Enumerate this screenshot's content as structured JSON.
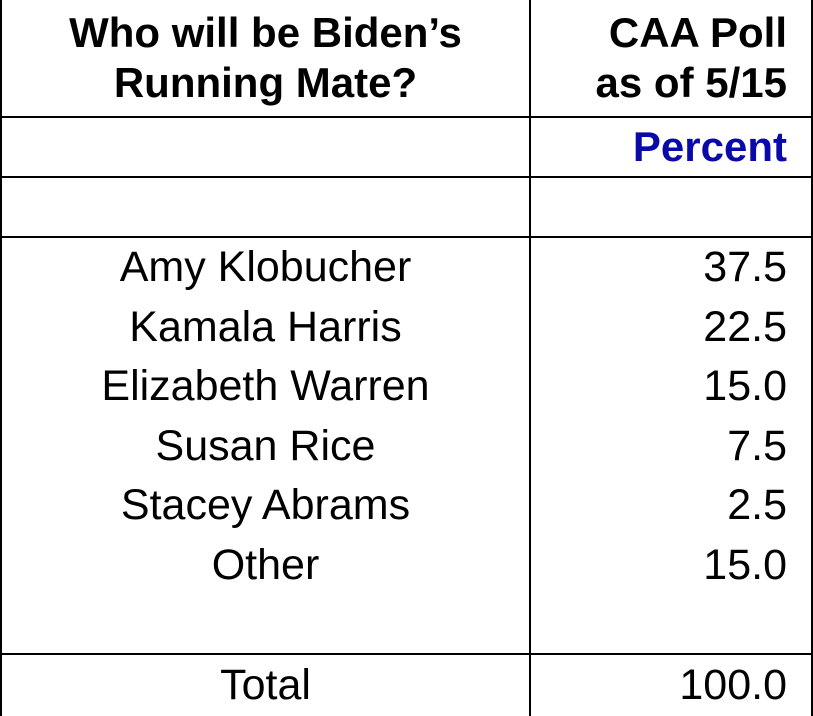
{
  "header": {
    "question_lines": [
      "Who will be Biden’s",
      "Running Mate?"
    ],
    "poll_lines": [
      "CAA Poll",
      "as of 5/15"
    ],
    "unit": "Percent"
  },
  "table": {
    "rows": [
      [
        "Amy Klobucher",
        "37.5"
      ],
      [
        "Kamala Harris",
        "22.5"
      ],
      [
        "Elizabeth Warren",
        "15.0"
      ],
      [
        "Susan Rice",
        "7.5"
      ],
      [
        "Stacey Abrams",
        "2.5"
      ],
      [
        "Other",
        "15.0"
      ]
    ]
  },
  "total": {
    "label": "Total",
    "value": "100.0"
  }
}
